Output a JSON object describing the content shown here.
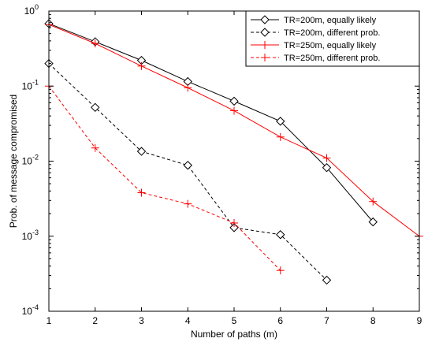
{
  "chart_data": {
    "type": "line",
    "xlabel": "Number of paths (m)",
    "ylabel": "Prob. of message compromised",
    "xlim": [
      1,
      9
    ],
    "ylim": [
      0.0001,
      1
    ],
    "yscale": "log",
    "xticks": [
      "1",
      "2",
      "3",
      "4",
      "5",
      "6",
      "7",
      "8",
      "9"
    ],
    "yticks": [
      {
        "value": 0.0001,
        "base": "10",
        "exp": "-4"
      },
      {
        "value": 0.001,
        "base": "10",
        "exp": "-3"
      },
      {
        "value": 0.01,
        "base": "10",
        "exp": "-2"
      },
      {
        "value": 0.1,
        "base": "10",
        "exp": "-1"
      },
      {
        "value": 1,
        "base": "10",
        "exp": "0"
      }
    ],
    "grid": false,
    "legend_position": "top-right",
    "series": [
      {
        "name": "TR=200m, equally likely",
        "color": "#000000",
        "dash": "solid",
        "marker": "diamond",
        "x": [
          1,
          2,
          3,
          4,
          5,
          6,
          7,
          8
        ],
        "y": [
          0.68,
          0.39,
          0.22,
          0.115,
          0.063,
          0.034,
          0.0082,
          0.00155
        ]
      },
      {
        "name": "TR=200m, different prob.",
        "color": "#000000",
        "dash": "dashed",
        "marker": "diamond",
        "x": [
          1,
          2,
          3,
          4,
          5,
          6,
          7
        ],
        "y": [
          0.2,
          0.052,
          0.0135,
          0.0088,
          0.0013,
          0.00105,
          0.00026
        ]
      },
      {
        "name": "TR=250m, equally likely",
        "color": "#ff0000",
        "dash": "solid",
        "marker": "plus",
        "x": [
          1,
          2,
          3,
          4,
          5,
          6,
          7,
          8,
          9
        ],
        "y": [
          0.66,
          0.37,
          0.185,
          0.095,
          0.047,
          0.021,
          0.011,
          0.0029,
          0.001
        ]
      },
      {
        "name": "TR=250m, different prob.",
        "color": "#ff0000",
        "dash": "dashed",
        "marker": "plus",
        "x": [
          1,
          2,
          3,
          4,
          5,
          6
        ],
        "y": [
          0.1,
          0.015,
          0.0038,
          0.0027,
          0.0015,
          0.00035
        ]
      }
    ]
  }
}
